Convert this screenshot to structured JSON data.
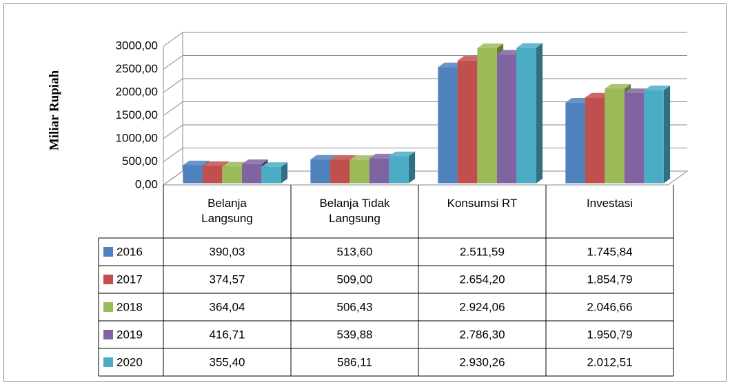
{
  "chart_data": {
    "type": "bar3d",
    "y_label": "Miliar Rupiah",
    "categories": [
      "Belanja Langsung",
      "Belanja Tidak Langsung",
      "Konsumsi RT",
      "Investasi"
    ],
    "series": [
      {
        "name": "2016",
        "color": "#4f81bd",
        "values": [
          390.03,
          513.6,
          2511.59,
          1745.84
        ],
        "value_labels": [
          "390,03",
          "513,60",
          "2.511,59",
          "1.745,84"
        ]
      },
      {
        "name": "2017",
        "color": "#c0504d",
        "values": [
          374.57,
          509.0,
          2654.2,
          1854.79
        ],
        "value_labels": [
          "374,57",
          "509,00",
          "2.654,20",
          "1.854,79"
        ]
      },
      {
        "name": "2018",
        "color": "#9bbb59",
        "values": [
          364.04,
          506.43,
          2924.06,
          2046.66
        ],
        "value_labels": [
          "364,04",
          "506,43",
          "2.924,06",
          "2.046,66"
        ]
      },
      {
        "name": "2019",
        "color": "#8064a2",
        "values": [
          416.71,
          539.88,
          2786.3,
          1950.79
        ],
        "value_labels": [
          "416,71",
          "539,88",
          "2.786,30",
          "1.950,79"
        ]
      },
      {
        "name": "2020",
        "color": "#4bacc6",
        "values": [
          355.4,
          586.11,
          2930.26,
          2012.51
        ],
        "value_labels": [
          "355,40",
          "586,11",
          "2.930,26",
          "2.012,51"
        ]
      }
    ],
    "ylim": [
      0,
      3000
    ],
    "yticks": [
      {
        "value": 0,
        "label": "0,00"
      },
      {
        "value": 500,
        "label": "500,00"
      },
      {
        "value": 1000,
        "label": "1000,00"
      },
      {
        "value": 1500,
        "label": "1500,00"
      },
      {
        "value": 2000,
        "label": "2000,00"
      },
      {
        "value": 2500,
        "label": "2500,00"
      },
      {
        "value": 3000,
        "label": "3000,00"
      }
    ],
    "grid": true
  }
}
